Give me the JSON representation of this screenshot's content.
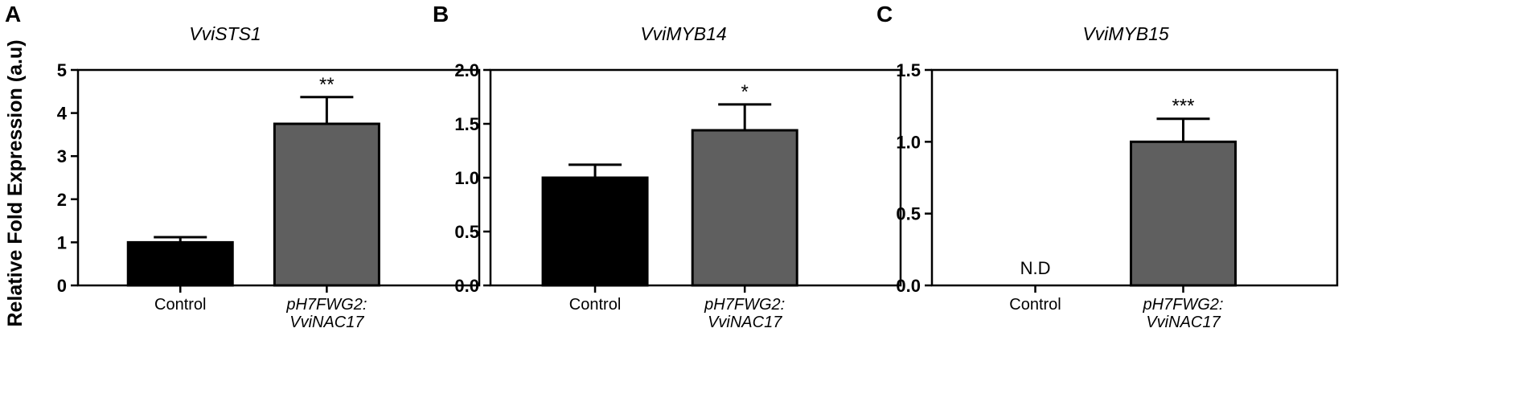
{
  "shared_ylabel": "Relative Fold Expression (a.u)",
  "colors": {
    "control": "#000000",
    "treatment": "#5f5f5f",
    "axis": "#000000"
  },
  "chart_data": [
    {
      "type": "bar",
      "panel": "A",
      "title": "VviSTS1",
      "categories": [
        "Control",
        "pH7FWG2:\nVviNAC17"
      ],
      "values": [
        1.0,
        3.75
      ],
      "errors": [
        0.12,
        0.62
      ],
      "significance": [
        "",
        "**"
      ],
      "annotations": [
        "",
        ""
      ],
      "ylim": [
        0,
        5
      ],
      "yticks": [
        0,
        1,
        2,
        3,
        4,
        5
      ],
      "ytick_labels": [
        "0",
        "1",
        "2",
        "3",
        "4",
        "5"
      ],
      "ylabel": "Relative Fold Expression (a.u)"
    },
    {
      "type": "bar",
      "panel": "B",
      "title": "VviMYB14",
      "categories": [
        "Control",
        "pH7FWG2:\nVviNAC17"
      ],
      "values": [
        1.0,
        1.44
      ],
      "errors": [
        0.12,
        0.24
      ],
      "significance": [
        "",
        "*"
      ],
      "annotations": [
        "",
        ""
      ],
      "ylim": [
        0,
        2
      ],
      "yticks": [
        0,
        0.5,
        1,
        1.5,
        2
      ],
      "ytick_labels": [
        "0.0",
        "0.5",
        "1.0",
        "1.5",
        "2.0"
      ],
      "ylabel": ""
    },
    {
      "type": "bar",
      "panel": "C",
      "title": "VviMYB15",
      "categories": [
        "Control",
        "pH7FWG2:\nVviNAC17"
      ],
      "values": [
        0,
        1.0
      ],
      "errors": [
        0,
        0.16
      ],
      "significance": [
        "",
        "***"
      ],
      "annotations": [
        "N.D",
        ""
      ],
      "ylim": [
        0,
        1.5
      ],
      "yticks": [
        0,
        0.5,
        1,
        1.5
      ],
      "ytick_labels": [
        "0.0",
        "0.5",
        "1.0",
        "1.5"
      ],
      "ylabel": ""
    }
  ]
}
